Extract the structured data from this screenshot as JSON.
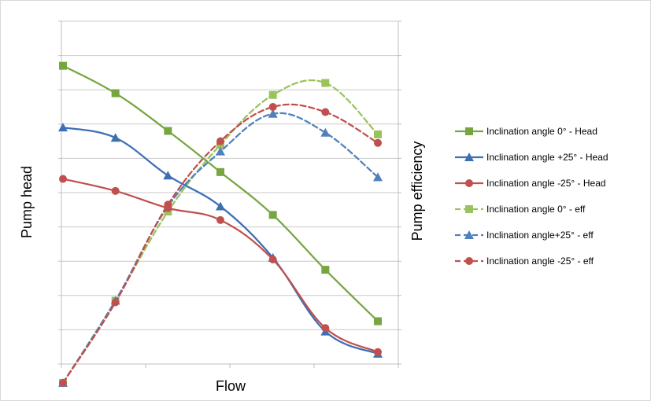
{
  "chart_data": {
    "type": "line",
    "xlabel": "Flow",
    "ylabel": "Pump head",
    "y2label": "Pump efficiency",
    "grid": true,
    "legend_position": "right",
    "xlim": [
      0,
      8
    ],
    "ylim": [
      0,
      10
    ],
    "y2lim": [
      0,
      10
    ],
    "series": [
      {
        "name": "Inclination angle 0° - Head",
        "axis": "left",
        "color": "#77a640",
        "dash": "solid",
        "marker": "square",
        "points": [
          [
            0,
            8.7
          ],
          [
            1.25,
            7.9
          ],
          [
            2.5,
            6.8
          ],
          [
            3.75,
            5.6
          ],
          [
            5.0,
            4.35
          ],
          [
            6.25,
            2.75
          ],
          [
            7.5,
            1.25
          ]
        ]
      },
      {
        "name": "Inclination angle +25° - Head",
        "axis": "left",
        "color": "#3c6fb4",
        "dash": "solid",
        "marker": "triangle",
        "points": [
          [
            0,
            6.9
          ],
          [
            1.25,
            6.6
          ],
          [
            2.5,
            5.5
          ],
          [
            3.75,
            4.6
          ],
          [
            5.0,
            3.1
          ],
          [
            6.25,
            0.95
          ],
          [
            7.5,
            0.3
          ]
        ]
      },
      {
        "name": "Inclination angle -25° - Head",
        "axis": "left",
        "color": "#c0504d",
        "dash": "solid",
        "marker": "circle",
        "points": [
          [
            0,
            5.4
          ],
          [
            1.25,
            5.05
          ],
          [
            2.5,
            4.55
          ],
          [
            3.75,
            4.2
          ],
          [
            5.0,
            3.05
          ],
          [
            6.25,
            1.05
          ],
          [
            7.5,
            0.35
          ]
        ]
      },
      {
        "name": "Inclination angle 0° - eff",
        "axis": "right",
        "color": "#9bc35b",
        "dash": "dashed",
        "marker": "square",
        "points": [
          [
            0,
            -0.55
          ],
          [
            1.25,
            1.85
          ],
          [
            2.5,
            4.45
          ],
          [
            3.75,
            6.4
          ],
          [
            5.0,
            7.85
          ],
          [
            6.25,
            8.2
          ],
          [
            7.5,
            6.7
          ]
        ]
      },
      {
        "name": "Inclination angle+25° - eff",
        "axis": "right",
        "color": "#4f81bd",
        "dash": "dashed",
        "marker": "triangle",
        "points": [
          [
            0,
            -0.55
          ],
          [
            1.25,
            1.85
          ],
          [
            2.5,
            4.6
          ],
          [
            3.75,
            6.2
          ],
          [
            5.0,
            7.3
          ],
          [
            6.25,
            6.75
          ],
          [
            7.5,
            5.45
          ]
        ]
      },
      {
        "name": "Inclination angle -25° - eff",
        "axis": "right",
        "color": "#c0504d",
        "dash": "dashed",
        "marker": "circle",
        "points": [
          [
            0,
            -0.55
          ],
          [
            1.25,
            1.8
          ],
          [
            2.5,
            4.65
          ],
          [
            3.75,
            6.5
          ],
          [
            5.0,
            7.5
          ],
          [
            6.25,
            7.35
          ],
          [
            7.5,
            6.45
          ]
        ]
      }
    ]
  }
}
